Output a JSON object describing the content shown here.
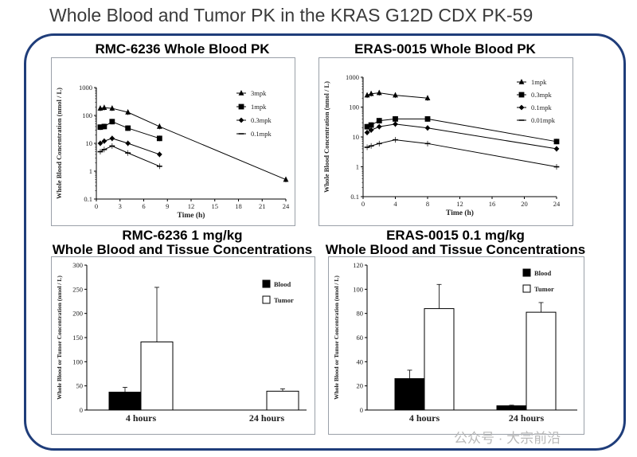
{
  "page_title": "Whole Blood and Tumor PK in the KRAS G12D CDX PK-59",
  "watermark": "公众号 · 大宗前沿",
  "chart_data": [
    {
      "id": "rmc-pk",
      "type": "line",
      "title": "RMC-6236 Whole Blood PK",
      "xlabel": "Time (h)",
      "ylabel": "Whole Blood Concentration (nmol / L)",
      "yscale": "log",
      "ylim": [
        0.1,
        1000
      ],
      "xlim": [
        0,
        24
      ],
      "xticks": [
        0,
        3,
        6,
        9,
        12,
        15,
        18,
        21,
        24
      ],
      "yticks": [
        0.1,
        1,
        10,
        100,
        1000
      ],
      "ytick_labels": [
        "0.1",
        "1",
        "10",
        "100",
        "1000"
      ],
      "legend_position": "top-right",
      "series": [
        {
          "name": "3mpk",
          "marker": "triangle",
          "x": [
            0.5,
            1,
            2,
            4,
            8,
            24
          ],
          "y": [
            180,
            190,
            180,
            130,
            40,
            0.5
          ]
        },
        {
          "name": "1mpk",
          "marker": "square",
          "x": [
            0.5,
            1,
            2,
            4,
            8
          ],
          "y": [
            38,
            40,
            60,
            35,
            15
          ]
        },
        {
          "name": "0.3mpk",
          "marker": "diamond",
          "x": [
            0.5,
            1,
            2,
            4,
            8
          ],
          "y": [
            10,
            12,
            15,
            10,
            4
          ]
        },
        {
          "name": "0.1mpk",
          "marker": "dash",
          "x": [
            0.5,
            1,
            2,
            4,
            8
          ],
          "y": [
            5,
            6,
            8,
            4.5,
            1.5
          ]
        }
      ]
    },
    {
      "id": "eras-pk",
      "type": "line",
      "title": "ERAS-0015 Whole Blood PK",
      "xlabel": "Time (h)",
      "ylabel": "Whole Blood Concentration (nmol / L)",
      "yscale": "log",
      "ylim": [
        0.1,
        1000
      ],
      "xlim": [
        0,
        24
      ],
      "xticks": [
        0,
        4,
        8,
        12,
        16,
        20,
        24
      ],
      "yticks": [
        0.1,
        1,
        10,
        100,
        1000
      ],
      "ytick_labels": [
        "0.1",
        "1",
        "10",
        "100",
        "1000"
      ],
      "legend_position": "top-right",
      "series": [
        {
          "name": "1mpk",
          "marker": "triangle",
          "x": [
            0.5,
            1,
            2,
            4,
            8
          ],
          "y": [
            250,
            280,
            300,
            250,
            200
          ]
        },
        {
          "name": "0.3mpk",
          "marker": "square",
          "x": [
            0.5,
            1,
            2,
            4,
            8,
            24
          ],
          "y": [
            22,
            25,
            35,
            40,
            40,
            7
          ]
        },
        {
          "name": "0.1mpk",
          "marker": "diamond",
          "x": [
            0.5,
            1,
            2,
            4,
            8,
            24
          ],
          "y": [
            14,
            17,
            22,
            27,
            20,
            4
          ]
        },
        {
          "name": "0.01mpk",
          "marker": "dash",
          "x": [
            0.5,
            1,
            2,
            4,
            8,
            24
          ],
          "y": [
            4.5,
            5,
            6,
            8,
            6,
            1
          ]
        }
      ]
    },
    {
      "id": "rmc-tissue",
      "type": "bar",
      "title_line1": "RMC-6236 1 mg/kg",
      "title_line2": "Whole Blood and Tissue Concentrations",
      "ylabel": "Whole Blood or Tumor Concentration (nmol / L)",
      "ylim": [
        0,
        300
      ],
      "yticks": [
        0,
        50,
        100,
        150,
        200,
        250,
        300
      ],
      "categories": [
        "4 hours",
        "24 hours"
      ],
      "legend_position": "top-right",
      "series": [
        {
          "name": "Blood",
          "values": [
            37,
            0
          ],
          "errors": [
            10,
            0
          ]
        },
        {
          "name": "Tumor",
          "values": [
            141,
            39
          ],
          "errors": [
            113,
            5
          ]
        }
      ]
    },
    {
      "id": "eras-tissue",
      "type": "bar",
      "title_line1": "ERAS-0015 0.1 mg/kg",
      "title_line2": "Whole Blood and Tissue Concentrations",
      "ylabel": "Whole Blood or Tumor Concentration (nmol / L)",
      "ylim": [
        0,
        120
      ],
      "yticks": [
        0,
        20,
        40,
        60,
        80,
        100,
        120
      ],
      "categories": [
        "4 hours",
        "24 hours"
      ],
      "legend_position": "top-right",
      "series": [
        {
          "name": "Blood",
          "values": [
            26,
            3.5
          ],
          "errors": [
            7,
            0.5
          ]
        },
        {
          "name": "Tumor",
          "values": [
            84,
            81
          ],
          "errors": [
            20,
            8
          ]
        }
      ]
    }
  ]
}
